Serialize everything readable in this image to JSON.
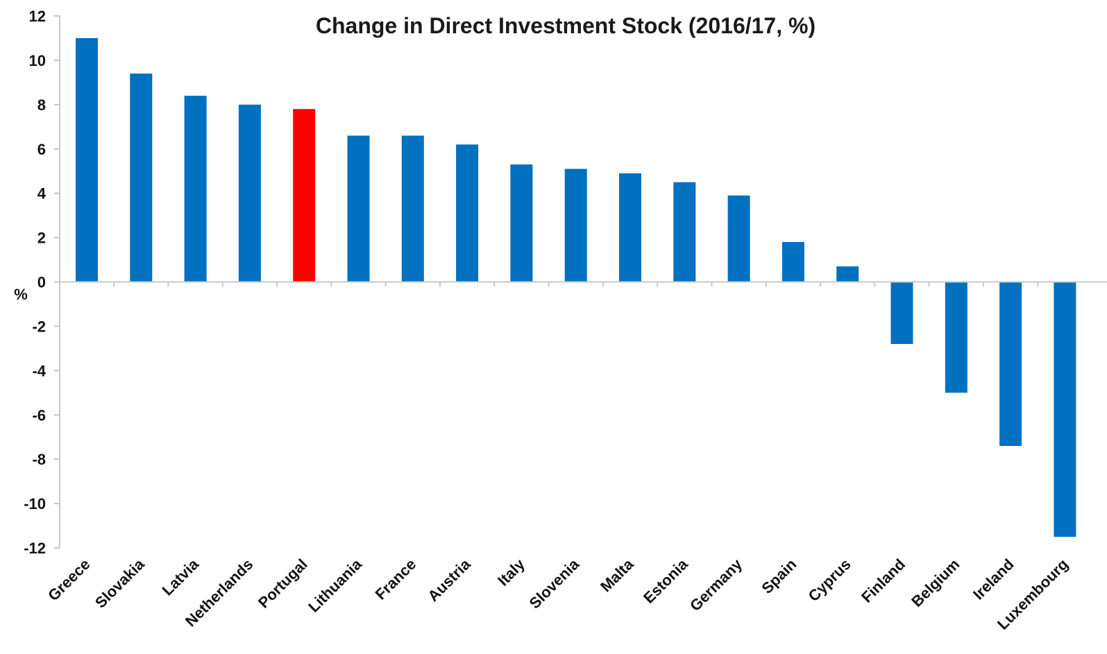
{
  "chart_data": {
    "type": "bar",
    "title": "Change in Direct Investment Stock (2016/17, %)",
    "xlabel": "",
    "ylabel": "%",
    "ylim": [
      -12,
      12
    ],
    "yticks": [
      12,
      10,
      8,
      6,
      4,
      2,
      0,
      -2,
      -4,
      -6,
      -8,
      -10,
      -12
    ],
    "categories": [
      "Greece",
      "Slovakia",
      "Latvia",
      "Netherlands",
      "Portugal",
      "Lithuania",
      "France",
      "Austria",
      "Italy",
      "Slovenia",
      "Malta",
      "Estonia",
      "Germany",
      "Spain",
      "Cyprus",
      "Finland",
      "Belgium",
      "Ireland",
      "Luxembourg"
    ],
    "values": [
      11.0,
      9.4,
      8.4,
      8.0,
      7.8,
      6.6,
      6.6,
      6.2,
      5.3,
      5.1,
      4.9,
      4.5,
      3.9,
      1.8,
      0.7,
      -2.8,
      -5.0,
      -7.4,
      -11.5
    ],
    "highlight_category": "Portugal",
    "colors": {
      "bar": "#0070c0",
      "highlight": "#ff0000",
      "axis": "#c8c8c8",
      "text": "#111111"
    },
    "grid": false,
    "legend": "none"
  }
}
